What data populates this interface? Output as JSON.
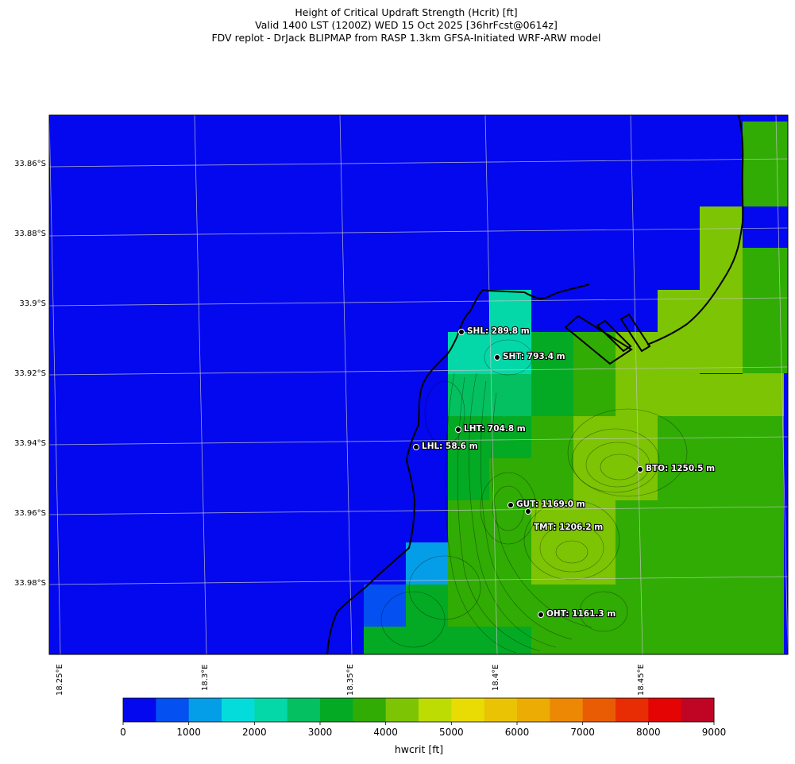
{
  "header": {
    "line1": "Height of Critical Updraft Strength (Hcrit) [ft]",
    "line2": "Valid 1400 LST (1200Z) WED 15 Oct 2025 [36hrFcst@0614z]",
    "line3": "FDV replot - DrJack BLIPMAP from RASP 1.3km GFSA-Initiated WRF-ARW model"
  },
  "map": {
    "lat_labels": [
      "33.86°S",
      "33.88°S",
      "33.9°S",
      "33.92°S",
      "33.94°S",
      "33.96°S",
      "33.98°S"
    ],
    "lon_labels": [
      "18.25°E",
      "18.3°E",
      "18.35°E",
      "18.4°E",
      "18.45°E"
    ],
    "stations": [
      {
        "label": "SHL: 289.8 m"
      },
      {
        "label": "SHT: 793.4 m"
      },
      {
        "label": "LHT: 704.8 m"
      },
      {
        "label": "LHL: 58.6 m"
      },
      {
        "label": "BTO: 1250.5 m"
      },
      {
        "label": "GUT: 1169.0 m"
      },
      {
        "label": "TMT: 1206.2 m"
      },
      {
        "label": "OHT: 1161.3 m"
      }
    ],
    "colors": {
      "blue": "#0408ee",
      "blue2": "#0450f0",
      "sky": "#049ee8",
      "cyan": "#04dcdc",
      "teal": "#04d8a8",
      "green1": "#04c060",
      "green2": "#04aa24",
      "green3": "#30ac04",
      "yellowgreen": "#7cc404",
      "lime": "#bcdc04"
    }
  },
  "colorbar": {
    "label": "hwcrit [ft]",
    "ticks": [
      "0",
      "1000",
      "2000",
      "3000",
      "4000",
      "5000",
      "6000",
      "7000",
      "8000",
      "9000"
    ],
    "colors": [
      "#0408ee",
      "#0450f0",
      "#049ee8",
      "#04dcdc",
      "#04d8a8",
      "#04c060",
      "#04aa24",
      "#30ac04",
      "#7cc404",
      "#bcdc04",
      "#e8dc04",
      "#eac404",
      "#ecac04",
      "#ec8804",
      "#ea5c04",
      "#e82c04",
      "#e40404",
      "#c00424"
    ]
  }
}
